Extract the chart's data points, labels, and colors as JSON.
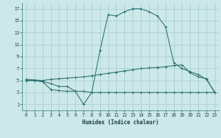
{
  "xlabel": "Humidex (Indice chaleur)",
  "background_color": "#cce8e8",
  "grid_color": "#aacece",
  "line_color": "#2a7070",
  "xlim": [
    -0.5,
    23.5
  ],
  "ylim": [
    0,
    18
  ],
  "xticks": [
    0,
    1,
    2,
    3,
    4,
    5,
    6,
    7,
    8,
    9,
    10,
    11,
    12,
    13,
    14,
    15,
    16,
    17,
    18,
    19,
    20,
    21,
    22,
    23
  ],
  "yticks": [
    1,
    3,
    5,
    7,
    9,
    11,
    13,
    15,
    17
  ],
  "line1_x": [
    0,
    1,
    2,
    3,
    4,
    5,
    6,
    7,
    8,
    9,
    10,
    11,
    12,
    13,
    14,
    15,
    16,
    17,
    18,
    19,
    20,
    21,
    22,
    23
  ],
  "line1_y": [
    5,
    5,
    4.8,
    3.5,
    3.3,
    3.2,
    3.2,
    1,
    3,
    10,
    16,
    15.8,
    16.5,
    17,
    17,
    16.5,
    15.8,
    14,
    8,
    7,
    6.5,
    6,
    5.2,
    3
  ],
  "line2_x": [
    0,
    1,
    2,
    3,
    4,
    5,
    6,
    7,
    8,
    9,
    10,
    11,
    12,
    13,
    14,
    15,
    16,
    17,
    18,
    19,
    20,
    21,
    22,
    23
  ],
  "line2_y": [
    5.2,
    5.1,
    5.0,
    5.2,
    5.3,
    5.4,
    5.5,
    5.6,
    5.8,
    6.0,
    6.2,
    6.4,
    6.6,
    6.8,
    7.0,
    7.1,
    7.2,
    7.3,
    7.5,
    7.6,
    6.3,
    5.6,
    5.3,
    3.0
  ],
  "line3_x": [
    0,
    1,
    2,
    3,
    4,
    5,
    6,
    7,
    8,
    9,
    10,
    11,
    12,
    13,
    14,
    15,
    16,
    17,
    18,
    19,
    20,
    21,
    22,
    23
  ],
  "line3_y": [
    5.0,
    5.0,
    4.8,
    4.5,
    4.0,
    4.0,
    3.2,
    3.2,
    3.0,
    3.0,
    3.0,
    3.0,
    3.0,
    3.0,
    3.0,
    3.0,
    3.0,
    3.0,
    3.0,
    3.0,
    3.0,
    3.0,
    3.0,
    3.0
  ]
}
